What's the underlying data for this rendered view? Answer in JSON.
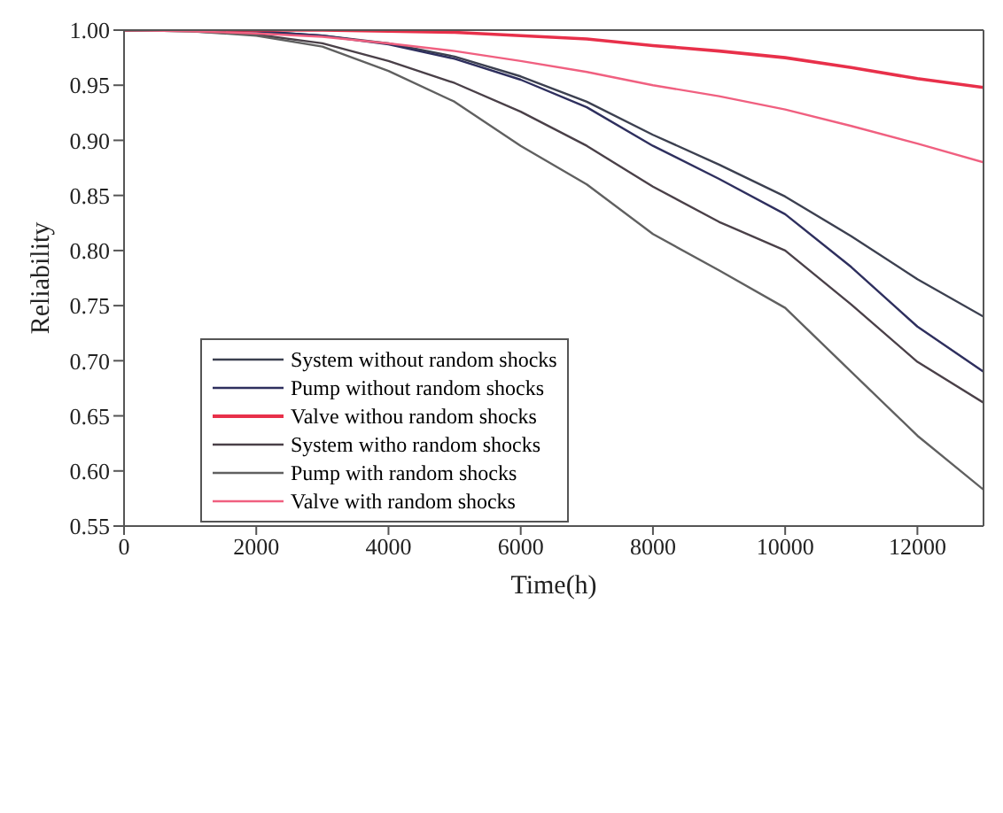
{
  "chart_data": {
    "type": "line",
    "xlabel": "Time(h)",
    "ylabel": "Reliability",
    "x": [
      0,
      1000,
      2000,
      3000,
      4000,
      5000,
      6000,
      7000,
      8000,
      9000,
      10000,
      11000,
      12000,
      13000
    ],
    "xlim": [
      0,
      13000
    ],
    "xticks": [
      0,
      2000,
      4000,
      6000,
      8000,
      10000,
      12000
    ],
    "ylim": [
      0.55,
      1
    ],
    "yticks": [
      {
        "value": 0.55,
        "label": "0.55"
      },
      {
        "value": 0.6,
        "label": "0.60"
      },
      {
        "value": 0.65,
        "label": "0.65"
      },
      {
        "value": 0.7,
        "label": "0.70"
      },
      {
        "value": 0.75,
        "label": "0.75"
      },
      {
        "value": 0.8,
        "label": "0.80"
      },
      {
        "value": 0.85,
        "label": "0.85"
      },
      {
        "value": 0.9,
        "label": "0.90"
      },
      {
        "value": 0.95,
        "label": "0.95"
      },
      {
        "value": 1,
        "label": "1.00"
      }
    ],
    "legend": "left",
    "marker": "none",
    "line_style": "solid",
    "series": [
      {
        "name": "System without random shocks",
        "color": "#3c4050",
        "values": [
          1,
          1,
          0.999,
          0.995,
          0.988,
          0.976,
          0.958,
          0.935,
          0.905,
          0.878,
          0.849,
          0.813,
          0.774,
          0.74
        ]
      },
      {
        "name": "Pump without random shocks",
        "color": "#2e2f5e",
        "values": [
          1,
          1,
          0.999,
          0.995,
          0.987,
          0.974,
          0.955,
          0.93,
          0.895,
          0.865,
          0.833,
          0.785,
          0.731,
          0.69
        ]
      },
      {
        "name": "Valve withou random shocks",
        "color": "#e8304a",
        "values": [
          1,
          1,
          1,
          1,
          0.999,
          0.998,
          0.995,
          0.992,
          0.986,
          0.981,
          0.975,
          0.966,
          0.956,
          0.948
        ]
      },
      {
        "name": "System witho random shocks",
        "color": "#4a4048",
        "values": [
          1,
          0.999,
          0.996,
          0.988,
          0.972,
          0.952,
          0.926,
          0.895,
          0.858,
          0.826,
          0.8,
          0.751,
          0.699,
          0.662
        ]
      },
      {
        "name": "Pump with random shocks",
        "color": "#606060",
        "values": [
          1,
          0.999,
          0.995,
          0.985,
          0.963,
          0.935,
          0.895,
          0.86,
          0.815,
          0.782,
          0.748,
          0.69,
          0.632,
          0.583
        ]
      },
      {
        "name": "Valve with random shocks",
        "color": "#f06080",
        "values": [
          1,
          0.999,
          0.997,
          0.994,
          0.988,
          0.981,
          0.972,
          0.962,
          0.95,
          0.94,
          0.928,
          0.913,
          0.897,
          0.88
        ]
      }
    ]
  }
}
